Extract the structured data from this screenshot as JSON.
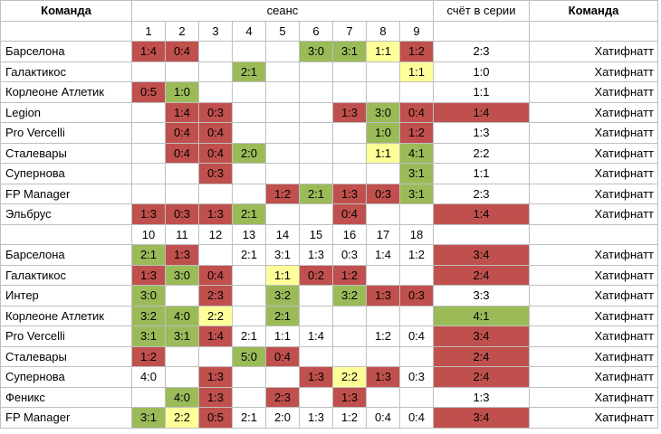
{
  "colors": {
    "r": "#c0504d",
    "g": "#9bbb59",
    "y": "#ffff99"
  },
  "header": {
    "team": "Команда",
    "session": "сеанс",
    "series": "счёт в серии",
    "opponent_header": "Команда"
  },
  "blocks": [
    {
      "sessions": [
        "1",
        "2",
        "3",
        "4",
        "5",
        "6",
        "7",
        "8",
        "9"
      ],
      "rows": [
        {
          "team": "Барселона",
          "cells": [
            [
              "1:4",
              "r"
            ],
            [
              "0:4",
              "r"
            ],
            [
              "",
              ""
            ],
            [
              "",
              ""
            ],
            [
              "",
              ""
            ],
            [
              "3:0",
              "g"
            ],
            [
              "3:1",
              "g"
            ],
            [
              "1:1",
              "y"
            ],
            [
              "1:2",
              "r"
            ]
          ],
          "series": [
            "2:3",
            ""
          ],
          "opponent": "Хатифнатт"
        },
        {
          "team": "Галактикос",
          "cells": [
            [
              "",
              ""
            ],
            [
              "",
              ""
            ],
            [
              "",
              ""
            ],
            [
              "2:1",
              "g"
            ],
            [
              "",
              ""
            ],
            [
              "",
              ""
            ],
            [
              "",
              ""
            ],
            [
              "",
              ""
            ],
            [
              "1:1",
              "y"
            ]
          ],
          "series": [
            "1:0",
            ""
          ],
          "opponent": "Хатифнатт"
        },
        {
          "team": "Корлеоне Атлетик",
          "cells": [
            [
              "0:5",
              "r"
            ],
            [
              "1:0",
              "g"
            ],
            [
              "",
              ""
            ],
            [
              "",
              ""
            ],
            [
              "",
              ""
            ],
            [
              "",
              ""
            ],
            [
              "",
              ""
            ],
            [
              "",
              ""
            ],
            [
              "",
              ""
            ]
          ],
          "series": [
            "1:1",
            ""
          ],
          "opponent": "Хатифнатт"
        },
        {
          "team": "Legion",
          "cells": [
            [
              "",
              ""
            ],
            [
              "1:4",
              "r"
            ],
            [
              "0:3",
              "r"
            ],
            [
              "",
              ""
            ],
            [
              "",
              ""
            ],
            [
              "",
              ""
            ],
            [
              "1:3",
              "r"
            ],
            [
              "3:0",
              "g"
            ],
            [
              "0:4",
              "r"
            ]
          ],
          "series": [
            "1:4",
            "r"
          ],
          "opponent": "Хатифнатт"
        },
        {
          "team": "Pro Vercelli",
          "cells": [
            [
              "",
              ""
            ],
            [
              "0:4",
              "r"
            ],
            [
              "0:4",
              "r"
            ],
            [
              "",
              ""
            ],
            [
              "",
              ""
            ],
            [
              "",
              ""
            ],
            [
              "",
              ""
            ],
            [
              "1:0",
              "g"
            ],
            [
              "1:2",
              "r"
            ]
          ],
          "series": [
            "1:3",
            ""
          ],
          "opponent": "Хатифнатт"
        },
        {
          "team": "Сталевары",
          "cells": [
            [
              "",
              ""
            ],
            [
              "0:4",
              "r"
            ],
            [
              "0:4",
              "r"
            ],
            [
              "2:0",
              "g"
            ],
            [
              "",
              ""
            ],
            [
              "",
              ""
            ],
            [
              "",
              ""
            ],
            [
              "1:1",
              "y"
            ],
            [
              "4:1",
              "g"
            ]
          ],
          "series": [
            "2:2",
            ""
          ],
          "opponent": "Хатифнатт"
        },
        {
          "team": "Супернова",
          "cells": [
            [
              "",
              ""
            ],
            [
              "",
              ""
            ],
            [
              "0:3",
              "r"
            ],
            [
              "",
              ""
            ],
            [
              "",
              ""
            ],
            [
              "",
              ""
            ],
            [
              "",
              ""
            ],
            [
              "",
              ""
            ],
            [
              "3:1",
              "g"
            ]
          ],
          "series": [
            "1:1",
            ""
          ],
          "opponent": "Хатифнатт"
        },
        {
          "team": "FP Manager",
          "cells": [
            [
              "",
              ""
            ],
            [
              "",
              ""
            ],
            [
              "",
              ""
            ],
            [
              "",
              ""
            ],
            [
              "1:2",
              "r"
            ],
            [
              "2:1",
              "g"
            ],
            [
              "1:3",
              "r"
            ],
            [
              "0:3",
              "r"
            ],
            [
              "3:1",
              "g"
            ]
          ],
          "series": [
            "2:3",
            ""
          ],
          "opponent": "Хатифнатт"
        },
        {
          "team": "Эльбрус",
          "cells": [
            [
              "1:3",
              "r"
            ],
            [
              "0:3",
              "r"
            ],
            [
              "1:3",
              "r"
            ],
            [
              "2:1",
              "g"
            ],
            [
              "",
              ""
            ],
            [
              "",
              ""
            ],
            [
              "0:4",
              "r"
            ],
            [
              "",
              ""
            ],
            [
              "",
              ""
            ]
          ],
          "series": [
            "1:4",
            "r"
          ],
          "opponent": "Хатифнатт"
        }
      ]
    },
    {
      "sessions": [
        "10",
        "11",
        "12",
        "13",
        "14",
        "15",
        "16",
        "17",
        "18"
      ],
      "rows": [
        {
          "team": "Барселона",
          "cells": [
            [
              "2:1",
              "g"
            ],
            [
              "1:3",
              "r"
            ],
            [
              "",
              ""
            ],
            [
              "2:1",
              ""
            ],
            [
              "3:1",
              ""
            ],
            [
              "1:3",
              ""
            ],
            [
              "0:3",
              ""
            ],
            [
              "1:4",
              ""
            ],
            [
              "1:2",
              ""
            ]
          ],
          "series": [
            "3:4",
            "r"
          ],
          "opponent": "Хатифнатт"
        },
        {
          "team": "Галактикос",
          "cells": [
            [
              "1:3",
              "r"
            ],
            [
              "3:0",
              "g"
            ],
            [
              "0:4",
              "r"
            ],
            [
              "",
              ""
            ],
            [
              "1:1",
              "y"
            ],
            [
              "0:2",
              "r"
            ],
            [
              "1:2",
              "r"
            ],
            [
              "",
              ""
            ],
            [
              "",
              ""
            ]
          ],
          "series": [
            "2:4",
            "r"
          ],
          "opponent": "Хатифнатт"
        },
        {
          "team": "Интер",
          "cells": [
            [
              "3:0",
              "g"
            ],
            [
              "",
              ""
            ],
            [
              "2:3",
              "r"
            ],
            [
              "",
              ""
            ],
            [
              "3:2",
              "g"
            ],
            [
              "",
              ""
            ],
            [
              "3:2",
              "g"
            ],
            [
              "1:3",
              "r"
            ],
            [
              "0:3",
              "r"
            ]
          ],
          "series": [
            "3:3",
            ""
          ],
          "opponent": "Хатифнатт"
        },
        {
          "team": "Корлеоне Атлетик",
          "cells": [
            [
              "3:2",
              "g"
            ],
            [
              "4:0",
              "g"
            ],
            [
              "2:2",
              "y"
            ],
            [
              "",
              ""
            ],
            [
              "2:1",
              "g"
            ],
            [
              "",
              ""
            ],
            [
              "",
              ""
            ],
            [
              "",
              ""
            ],
            [
              "",
              ""
            ]
          ],
          "series": [
            "4:1",
            "g"
          ],
          "opponent": "Хатифнатт"
        },
        {
          "team": "Pro Vercelli",
          "cells": [
            [
              "3:1",
              "g"
            ],
            [
              "3:1",
              "g"
            ],
            [
              "1:4",
              "r"
            ],
            [
              "2:1",
              ""
            ],
            [
              "1:1",
              ""
            ],
            [
              "1:4",
              ""
            ],
            [
              "",
              ""
            ],
            [
              "1:2",
              ""
            ],
            [
              "0:4",
              ""
            ]
          ],
          "series": [
            "3:4",
            "r"
          ],
          "opponent": "Хатифнатт"
        },
        {
          "team": "Сталевары",
          "cells": [
            [
              "1:2",
              "r"
            ],
            [
              "",
              ""
            ],
            [
              "",
              ""
            ],
            [
              "5:0",
              "g"
            ],
            [
              "0:4",
              "r"
            ],
            [
              "",
              ""
            ],
            [
              "",
              ""
            ],
            [
              "",
              ""
            ],
            [
              "",
              ""
            ]
          ],
          "series": [
            "2:4",
            "r"
          ],
          "opponent": "Хатифнатт"
        },
        {
          "team": "Супернова",
          "cells": [
            [
              "4:0",
              ""
            ],
            [
              "",
              ""
            ],
            [
              "1:3",
              "r"
            ],
            [
              "",
              ""
            ],
            [
              "",
              ""
            ],
            [
              "1:3",
              "r"
            ],
            [
              "2:2",
              "y"
            ],
            [
              "1:3",
              "r"
            ],
            [
              "0:3",
              ""
            ]
          ],
          "series": [
            "2:4",
            "r"
          ],
          "opponent": "Хатифнатт"
        },
        {
          "team": "Феникс",
          "cells": [
            [
              "",
              ""
            ],
            [
              "4:0",
              "g"
            ],
            [
              "1:3",
              "r"
            ],
            [
              "",
              ""
            ],
            [
              "2:3",
              "r"
            ],
            [
              "",
              ""
            ],
            [
              "1:3",
              "r"
            ],
            [
              "",
              ""
            ],
            [
              "",
              ""
            ]
          ],
          "series": [
            "1:3",
            ""
          ],
          "opponent": "Хатифнатт"
        },
        {
          "team": "FP Manager",
          "cells": [
            [
              "3:1",
              "g"
            ],
            [
              "2:2",
              "y"
            ],
            [
              "0:5",
              "r"
            ],
            [
              "2:1",
              ""
            ],
            [
              "2:0",
              ""
            ],
            [
              "1:3",
              ""
            ],
            [
              "1:2",
              ""
            ],
            [
              "0:4",
              ""
            ],
            [
              "0:4",
              ""
            ]
          ],
          "series": [
            "3:4",
            "r"
          ],
          "opponent": "Хатифнатт"
        }
      ]
    }
  ]
}
